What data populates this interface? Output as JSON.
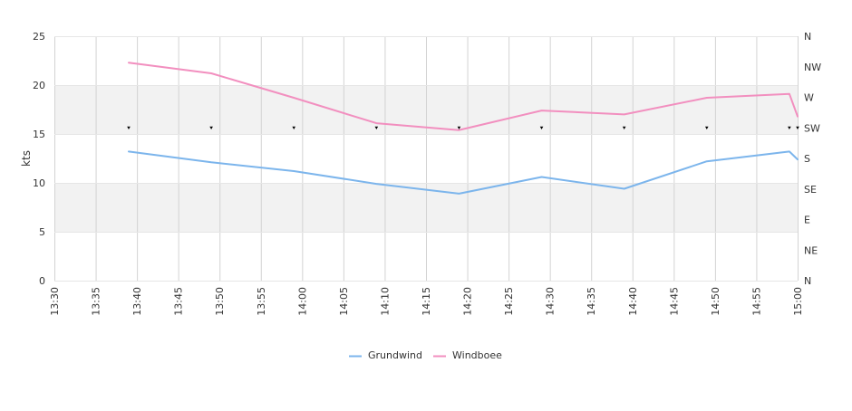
{
  "chart_data": {
    "type": "line",
    "ylabel": "kts",
    "ylim": [
      0,
      25
    ],
    "yticks": [
      "0",
      "5",
      "10",
      "15",
      "20",
      "25"
    ],
    "y2ticks": [
      "N",
      "NE",
      "E",
      "SE",
      "S",
      "SW",
      "W",
      "NW",
      "N"
    ],
    "x_range": [
      "13:30",
      "15:00"
    ],
    "xticks": [
      "13:30",
      "13:35",
      "13:40",
      "13:45",
      "13:50",
      "13:55",
      "14:00",
      "14:05",
      "14:10",
      "14:15",
      "14:20",
      "14:25",
      "14:30",
      "14:35",
      "14:40",
      "14:45",
      "14:50",
      "14:55",
      "15:00"
    ],
    "series": [
      {
        "name": "Grundwind",
        "color": "#7cb5ec",
        "x": [
          "13:39",
          "13:49",
          "13:59",
          "14:09",
          "14:19",
          "14:29",
          "14:39",
          "14:49",
          "14:59",
          "15:00"
        ],
        "values": [
          13.2,
          12.1,
          11.2,
          9.9,
          8.9,
          10.6,
          9.4,
          12.2,
          13.2,
          12.4
        ]
      },
      {
        "name": "Windboee",
        "color": "#f28fbf",
        "x": [
          "13:39",
          "13:49",
          "13:59",
          "14:09",
          "14:19",
          "14:29",
          "14:39",
          "14:49",
          "14:59",
          "15:00"
        ],
        "values": [
          22.3,
          21.2,
          18.7,
          16.1,
          15.4,
          17.4,
          17.0,
          18.7,
          19.1,
          16.8
        ]
      }
    ],
    "direction_markers": {
      "x": [
        "13:39",
        "13:49",
        "13:59",
        "14:09",
        "14:19",
        "14:29",
        "14:39",
        "14:49",
        "14:59",
        "15:00"
      ],
      "direction": [
        "SW",
        "SW",
        "SW",
        "SW",
        "SW",
        "SW",
        "SW",
        "SW",
        "SW",
        "SW"
      ]
    },
    "bands": [
      [
        5,
        10
      ],
      [
        15,
        20
      ]
    ],
    "grid": true,
    "legend_position": "bottom-center"
  }
}
